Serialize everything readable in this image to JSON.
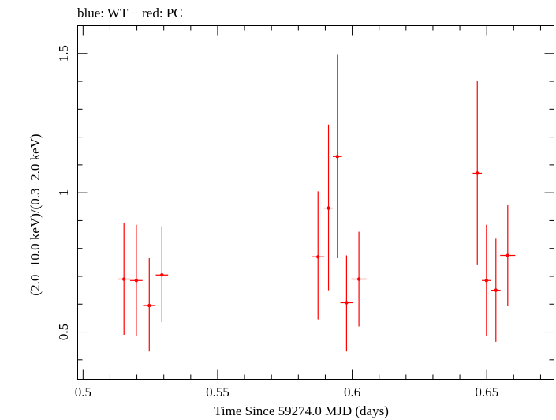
{
  "chart_data": {
    "type": "scatter",
    "title": "blue: WT − red: PC",
    "xlabel": "Time Since 59274.0 MJD (days)",
    "ylabel": "(2.0−10.0 keV)/(0.3−2.0 keV)",
    "xlim": [
      0.498,
      0.675
    ],
    "ylim": [
      0.33,
      1.6
    ],
    "x_ticks": [
      {
        "value": 0.5,
        "label": "0.5"
      },
      {
        "value": 0.55,
        "label": "0.55"
      },
      {
        "value": 0.6,
        "label": "0.6"
      },
      {
        "value": 0.65,
        "label": "0.65"
      }
    ],
    "y_ticks": [
      {
        "value": 0.5,
        "label": "0.5"
      },
      {
        "value": 1.0,
        "label": "1"
      },
      {
        "value": 1.5,
        "label": "1.5"
      }
    ],
    "grid": false,
    "series": [
      {
        "name": "PC",
        "color": "#ff0000",
        "points": [
          {
            "x": 0.5152,
            "y": 0.69,
            "xerr": 0.0023,
            "ylo": 0.49,
            "yhi": 0.89
          },
          {
            "x": 0.5198,
            "y": 0.685,
            "xerr": 0.0023,
            "ylo": 0.485,
            "yhi": 0.885
          },
          {
            "x": 0.5246,
            "y": 0.595,
            "xerr": 0.0023,
            "ylo": 0.43,
            "yhi": 0.765
          },
          {
            "x": 0.5293,
            "y": 0.705,
            "xerr": 0.0023,
            "ylo": 0.535,
            "yhi": 0.88
          },
          {
            "x": 0.5873,
            "y": 0.77,
            "xerr": 0.0023,
            "ylo": 0.545,
            "yhi": 1.005
          },
          {
            "x": 0.5912,
            "y": 0.945,
            "xerr": 0.0017,
            "ylo": 0.65,
            "yhi": 1.245
          },
          {
            "x": 0.5945,
            "y": 1.13,
            "xerr": 0.0017,
            "ylo": 0.765,
            "yhi": 1.495
          },
          {
            "x": 0.5979,
            "y": 0.605,
            "xerr": 0.0023,
            "ylo": 0.43,
            "yhi": 0.775
          },
          {
            "x": 0.6025,
            "y": 0.69,
            "xerr": 0.0028,
            "ylo": 0.52,
            "yhi": 0.86
          },
          {
            "x": 0.6465,
            "y": 1.07,
            "xerr": 0.0017,
            "ylo": 0.74,
            "yhi": 1.4
          },
          {
            "x": 0.6499,
            "y": 0.685,
            "xerr": 0.0017,
            "ylo": 0.485,
            "yhi": 0.885
          },
          {
            "x": 0.6534,
            "y": 0.65,
            "xerr": 0.0017,
            "ylo": 0.465,
            "yhi": 0.835
          },
          {
            "x": 0.6578,
            "y": 0.775,
            "xerr": 0.0028,
            "ylo": 0.595,
            "yhi": 0.955
          }
        ]
      }
    ]
  }
}
